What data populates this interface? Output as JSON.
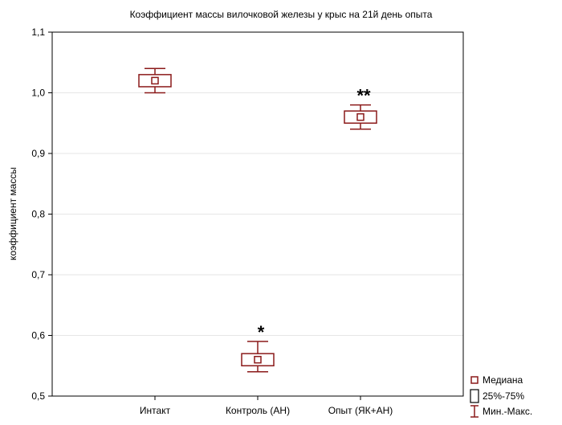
{
  "chart_data": {
    "type": "box",
    "title": "Коэффициент массы вилочковой железы у крыс на 21й день опыта",
    "ylabel": "коэффициент массы",
    "xlabel": "",
    "ylim": [
      0.5,
      1.1
    ],
    "yticks": [
      "0,5",
      "0,6",
      "0,7",
      "0,8",
      "0,9",
      "1,0",
      "1,1"
    ],
    "ytick_values": [
      0.5,
      0.6,
      0.7,
      0.8,
      0.9,
      1.0,
      1.1
    ],
    "grid": true,
    "categories": [
      "Интакт",
      "Контроль (АН)",
      "Опыт (ЯК+АН)"
    ],
    "boxes": [
      {
        "category": "Интакт",
        "min": 1.0,
        "q1": 1.01,
        "median": 1.02,
        "q3": 1.03,
        "max": 1.04,
        "mark": ""
      },
      {
        "category": "Контроль (АН)",
        "min": 0.54,
        "q1": 0.55,
        "median": 0.56,
        "q3": 0.57,
        "max": 0.59,
        "mark": "*"
      },
      {
        "category": "Опыт (ЯК+АН)",
        "min": 0.94,
        "q1": 0.95,
        "median": 0.96,
        "q3": 0.97,
        "max": 0.98,
        "mark": "**"
      }
    ],
    "legend": {
      "position": "bottom-right",
      "entries": [
        "Медиана",
        "25%-75%",
        "Мин.-Макс."
      ]
    },
    "colors": {
      "box": "#8b1a1a",
      "grid": "#e6e6e6",
      "axis": "#000000"
    }
  }
}
